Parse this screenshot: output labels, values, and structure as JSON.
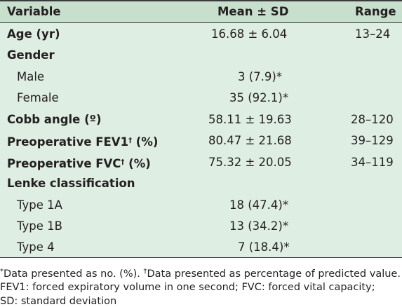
{
  "header": {
    "variable": "Variable",
    "mean_sd": "Mean ± SD",
    "range": "Range"
  },
  "rows": [
    {
      "label": "Age (yr)",
      "value": "16.68 ± 6.04",
      "range": "13–24"
    },
    {
      "label": "Gender",
      "value": "",
      "range": ""
    },
    {
      "label": "Male",
      "value": "3 (7.9)*",
      "range": ""
    },
    {
      "label": "Female",
      "value": "35 (92.1)*",
      "range": ""
    },
    {
      "label": "Cobb angle (º)",
      "value": "58.11 ± 19.63",
      "range": "28–120"
    },
    {
      "label": "Preoperative FEV1",
      "mark": "†",
      "label_suffix": " (%)",
      "value": "80.47 ± 21.68",
      "range": "39–129"
    },
    {
      "label": "Preoperative FVC",
      "mark": "†",
      "label_suffix": " (%)",
      "value": "75.32 ± 20.05",
      "range": "34–119"
    },
    {
      "label": "Lenke classification",
      "value": "",
      "range": ""
    },
    {
      "label": "Type 1A",
      "value": "18 (47.4)*",
      "range": ""
    },
    {
      "label": "Type 1B",
      "value": "13 (34.2)*",
      "range": ""
    },
    {
      "label": "Type 4",
      "value": "7 (18.4)*",
      "range": ""
    }
  ],
  "footnotes": {
    "line1_mark1": "*",
    "line1_text1": "Data presented as no. (%). ",
    "line1_mark2": "†",
    "line1_text2": "Data presented as percentage of predicted value.",
    "line2": "FEV1: forced expiratory volume in one second; FVC: forced vital capacity;",
    "line3": "SD: standard deviation"
  }
}
